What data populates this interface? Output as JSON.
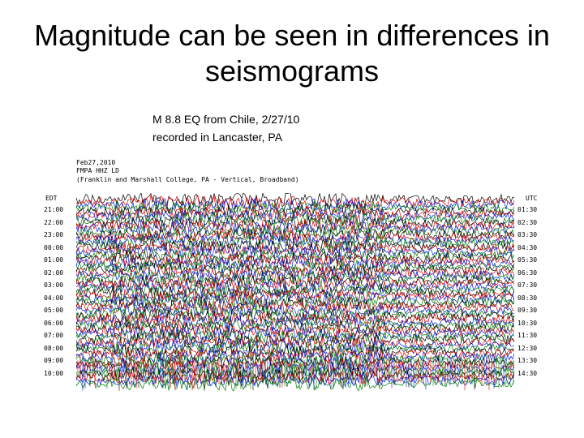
{
  "slide": {
    "title": "Magnitude can be seen in differences in seismograms",
    "caption_line1": "M 8.8 EQ from Chile, 2/27/10",
    "caption_line2": "recorded in Lancaster, PA"
  },
  "seismogram": {
    "header_date": "Feb27,2010",
    "header_station": "FMPA HHZ LD",
    "header_site": "(Franklin and Marshall College, PA - Vertical, Broadband)",
    "left_zone": "EDT",
    "right_zone": "UTC",
    "left_times": [
      "21:00",
      "22:00",
      "23:00",
      "00:00",
      "01:00",
      "02:00",
      "03:00",
      "04:00",
      "05:00",
      "06:00",
      "07:00",
      "08:00",
      "09:00",
      "10:00"
    ],
    "right_times": [
      "01:30",
      "02:30",
      "03:30",
      "04:30",
      "05:30",
      "06:30",
      "07:30",
      "08:30",
      "09:30",
      "10:30",
      "11:30",
      "12:30",
      "13:30",
      "14:30"
    ],
    "trace_colors": [
      "#000000",
      "#e00000",
      "#0020e0",
      "#008000"
    ]
  }
}
